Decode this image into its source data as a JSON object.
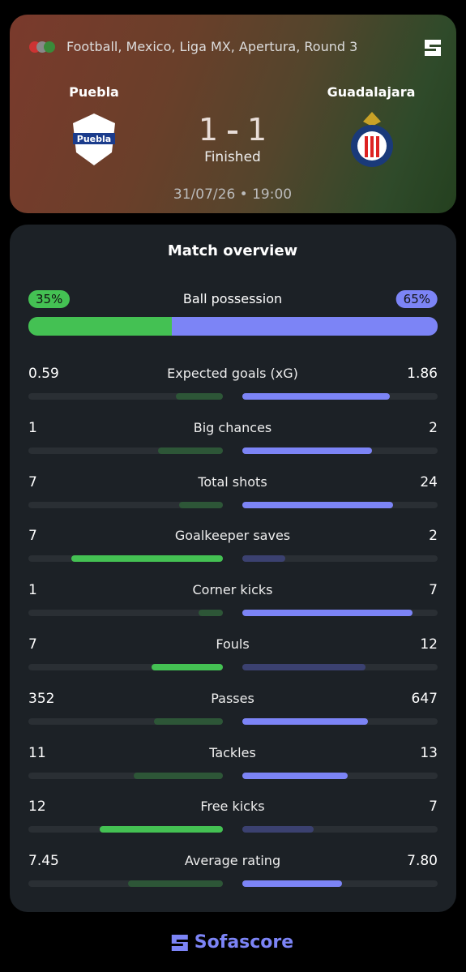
{
  "header": {
    "competition": "Football, Mexico, Liga MX, Apertura, Round 3",
    "home_team": "Puebla",
    "away_team": "Guadalajara",
    "score": {
      "home": 1,
      "away": 1
    },
    "status": "Finished",
    "datetime": "31/07/26 • 19:00"
  },
  "overview": {
    "title": "Match overview",
    "possession": {
      "label": "Ball possession",
      "values": [
        35,
        65
      ],
      "value_labels": [
        "35%",
        "65%"
      ]
    },
    "stats": [
      {
        "label": "Expected goals (xG)",
        "values": [
          0.59,
          1.86
        ]
      },
      {
        "label": "Big chances",
        "values": [
          1,
          2
        ]
      },
      {
        "label": "Total shots",
        "values": [
          7,
          24
        ]
      },
      {
        "label": "Goalkeeper saves",
        "values": [
          7,
          2
        ]
      },
      {
        "label": "Corner kicks",
        "values": [
          1,
          7
        ]
      },
      {
        "label": "Fouls",
        "values": [
          7,
          12
        ],
        "lower_is_better": true
      },
      {
        "label": "Passes",
        "values": [
          352,
          647
        ]
      },
      {
        "label": "Tackles",
        "values": [
          11,
          13
        ]
      },
      {
        "label": "Free kicks",
        "values": [
          12,
          7
        ]
      },
      {
        "label": "Average rating",
        "values": [
          7.45,
          7.8
        ],
        "value_labels": [
          "7.45",
          "7.80"
        ]
      }
    ]
  },
  "footer": {
    "brand": "Sofascore"
  },
  "colors": {
    "home": "#44c153",
    "home_dim": "#2d5637",
    "away": "#7c84f6",
    "away_dim": "#3b4170",
    "track": "#2a2f34"
  }
}
